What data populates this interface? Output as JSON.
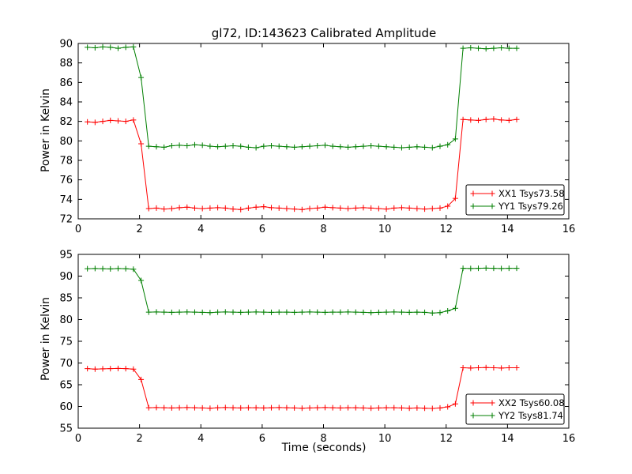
{
  "figure": {
    "background": "#ffffff",
    "frame_color": "#000000",
    "tick_color": "#000000"
  },
  "chart_data": [
    {
      "type": "line",
      "title": "gl72, ID:143623 Calibrated Amplitude",
      "xlabel": "",
      "ylabel": "Power in Kelvin",
      "xlim": [
        0,
        16
      ],
      "ylim": [
        72,
        90
      ],
      "xticks": [
        0,
        2,
        4,
        6,
        8,
        10,
        12,
        14,
        16
      ],
      "yticks": [
        72,
        74,
        76,
        78,
        80,
        82,
        84,
        86,
        88,
        90
      ],
      "grid": false,
      "legend_position": "lower right",
      "x": [
        0.3,
        0.55,
        0.8,
        1.05,
        1.3,
        1.55,
        1.8,
        2.05,
        2.3,
        2.55,
        2.8,
        3.05,
        3.3,
        3.55,
        3.8,
        4.05,
        4.3,
        4.55,
        4.8,
        5.05,
        5.3,
        5.55,
        5.8,
        6.05,
        6.3,
        6.55,
        6.8,
        7.05,
        7.3,
        7.55,
        7.8,
        8.05,
        8.3,
        8.55,
        8.8,
        9.05,
        9.3,
        9.55,
        9.8,
        10.05,
        10.3,
        10.55,
        10.8,
        11.05,
        11.3,
        11.55,
        11.8,
        12.05,
        12.3,
        12.55,
        12.8,
        13.05,
        13.3,
        13.55,
        13.8,
        14.05,
        14.3
      ],
      "series": [
        {
          "name": "XX1 Tsys73.58",
          "color": "#ff0000",
          "marker": "+",
          "values": [
            81.95,
            81.9,
            82.0,
            82.1,
            82.05,
            82.0,
            82.15,
            79.7,
            73.05,
            73.1,
            73.0,
            73.05,
            73.15,
            73.2,
            73.1,
            73.05,
            73.1,
            73.15,
            73.1,
            73.0,
            72.95,
            73.1,
            73.2,
            73.25,
            73.15,
            73.1,
            73.05,
            73.0,
            72.95,
            73.05,
            73.1,
            73.2,
            73.15,
            73.1,
            73.05,
            73.1,
            73.15,
            73.1,
            73.05,
            73.0,
            73.1,
            73.15,
            73.1,
            73.05,
            73.0,
            73.05,
            73.1,
            73.3,
            74.1,
            82.2,
            82.15,
            82.1,
            82.2,
            82.25,
            82.15,
            82.1,
            82.2
          ]
        },
        {
          "name": "YY1 Tsys79.26",
          "color": "#007f00",
          "marker": "+",
          "values": [
            89.6,
            89.55,
            89.65,
            89.6,
            89.5,
            89.6,
            89.65,
            86.5,
            79.45,
            79.4,
            79.35,
            79.5,
            79.55,
            79.5,
            79.6,
            79.55,
            79.45,
            79.4,
            79.45,
            79.5,
            79.45,
            79.35,
            79.3,
            79.45,
            79.5,
            79.45,
            79.4,
            79.35,
            79.4,
            79.45,
            79.5,
            79.55,
            79.45,
            79.4,
            79.35,
            79.4,
            79.45,
            79.5,
            79.45,
            79.4,
            79.35,
            79.3,
            79.35,
            79.4,
            79.35,
            79.3,
            79.45,
            79.6,
            80.2,
            89.5,
            89.55,
            89.5,
            89.45,
            89.5,
            89.55,
            89.5,
            89.5
          ]
        }
      ]
    },
    {
      "type": "line",
      "title": "",
      "xlabel": "Time (seconds)",
      "ylabel": "Power in Kelvin",
      "xlim": [
        0,
        16
      ],
      "ylim": [
        55,
        95
      ],
      "xticks": [
        0,
        2,
        4,
        6,
        8,
        10,
        12,
        14,
        16
      ],
      "yticks": [
        55,
        60,
        65,
        70,
        75,
        80,
        85,
        90,
        95
      ],
      "grid": false,
      "legend_position": "lower right",
      "x": [
        0.3,
        0.55,
        0.8,
        1.05,
        1.3,
        1.55,
        1.8,
        2.05,
        2.3,
        2.55,
        2.8,
        3.05,
        3.3,
        3.55,
        3.8,
        4.05,
        4.3,
        4.55,
        4.8,
        5.05,
        5.3,
        5.55,
        5.8,
        6.05,
        6.3,
        6.55,
        6.8,
        7.05,
        7.3,
        7.55,
        7.8,
        8.05,
        8.3,
        8.55,
        8.8,
        9.05,
        9.3,
        9.55,
        9.8,
        10.05,
        10.3,
        10.55,
        10.8,
        11.05,
        11.3,
        11.55,
        11.8,
        12.05,
        12.3,
        12.55,
        12.8,
        13.05,
        13.3,
        13.55,
        13.8,
        14.05,
        14.3
      ],
      "series": [
        {
          "name": "XX2 Tsys60.08",
          "color": "#ff0000",
          "marker": "+",
          "values": [
            68.7,
            68.6,
            68.65,
            68.7,
            68.75,
            68.7,
            68.6,
            66.2,
            59.7,
            59.75,
            59.7,
            59.65,
            59.7,
            59.75,
            59.7,
            59.65,
            59.6,
            59.7,
            59.75,
            59.7,
            59.65,
            59.7,
            59.7,
            59.65,
            59.7,
            59.75,
            59.7,
            59.65,
            59.6,
            59.65,
            59.7,
            59.75,
            59.7,
            59.65,
            59.7,
            59.7,
            59.65,
            59.6,
            59.65,
            59.7,
            59.7,
            59.65,
            59.6,
            59.65,
            59.6,
            59.55,
            59.65,
            59.9,
            60.6,
            68.9,
            68.85,
            68.9,
            68.95,
            68.9,
            68.85,
            68.9,
            68.9
          ]
        },
        {
          "name": "YY2 Tsys81.74",
          "color": "#007f00",
          "marker": "+",
          "values": [
            91.7,
            91.75,
            91.7,
            91.65,
            91.75,
            91.7,
            91.6,
            89.0,
            81.7,
            81.75,
            81.7,
            81.65,
            81.7,
            81.75,
            81.7,
            81.65,
            81.6,
            81.7,
            81.75,
            81.7,
            81.65,
            81.7,
            81.75,
            81.7,
            81.65,
            81.7,
            81.7,
            81.65,
            81.7,
            81.75,
            81.7,
            81.65,
            81.7,
            81.7,
            81.75,
            81.7,
            81.65,
            81.6,
            81.65,
            81.7,
            81.75,
            81.7,
            81.65,
            81.7,
            81.65,
            81.5,
            81.6,
            82.0,
            82.6,
            91.8,
            91.75,
            91.8,
            91.85,
            91.8,
            91.75,
            91.8,
            91.8
          ]
        }
      ]
    }
  ]
}
